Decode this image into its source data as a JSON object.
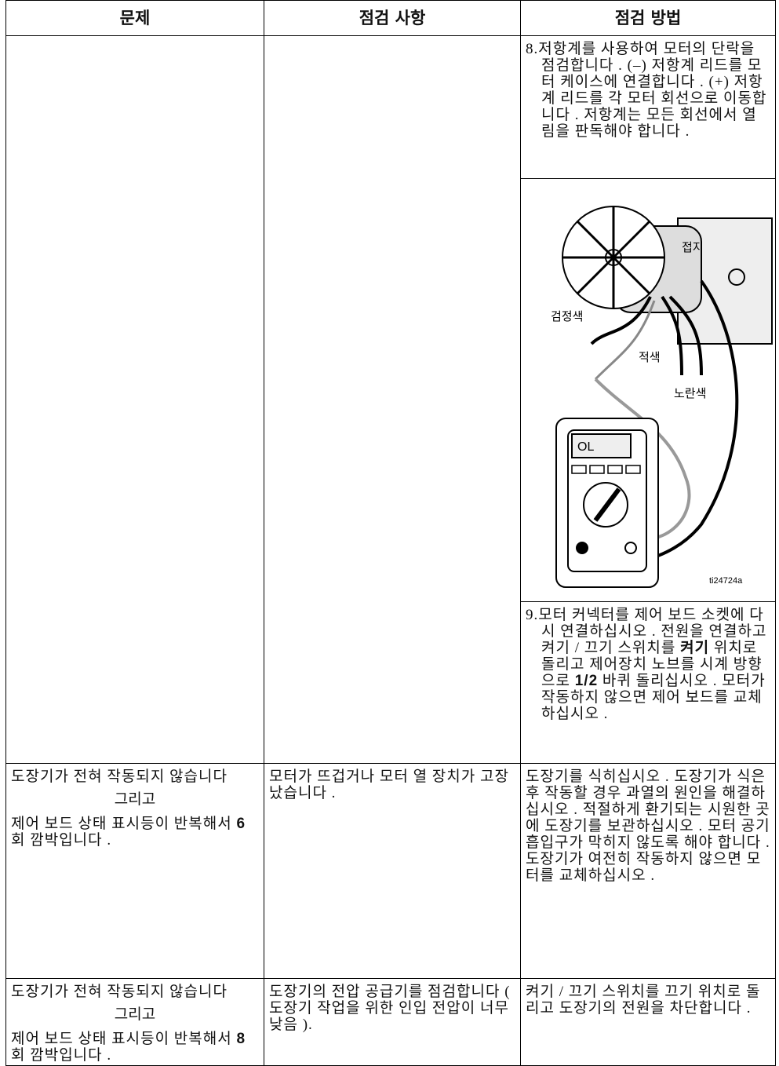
{
  "table": {
    "header": [
      "문제",
      "점검 사항",
      "점검 방법"
    ],
    "rows": [
      {
        "method": {
          "step8": "8.저항계를 사용하여 모터의 단락을 점검합니다 . (–) 저항계 리드를 모터 케이스에 연결합니다 . (+) 저항계 리드를 각 모터 회선으로 이동합니다 . 저항계는 모든 회선에서 열림을 판독해야 합니다 .",
          "figure": {
            "ground": "접지",
            "black": "검정색",
            "red": "적색",
            "yellow": "노란색",
            "display": "OL",
            "figure_id": "ti24724a"
          },
          "step9": [
            "9.모터 커넥터를 제어 보드 소켓에 다시 연결하십시오 . 전원을 연결하고 켜기 / 끄기 스위치를 ",
            "켜기",
            " 위치로 돌리고 제어장치 노브를 시계 방향으로 ",
            "1/2",
            " 바퀴 돌리십시오 . 모터가 작동하지 않으면 제어 보드를 교체하십시오 ."
          ]
        }
      },
      {
        "problem": [
          "도장기가 전혀 작동되지 않습니다",
          "그리고",
          "제어 보드 상태 표시등이 반복해서 ",
          "6",
          " 회 깜박입니다 ."
        ],
        "check": "모터가 뜨겁거나 모터 열 장치가 고장났습니다 .",
        "method": "도장기를 식히십시오 . 도장기가 식은 후 작동할 경우 과열의 원인을 해결하십시오 . 적절하게 환기되는 시원한 곳에 도장기를 보관하십시오 . 모터 공기 흡입구가 막히지 않도록 해야 합니다 . 도장기가 여전히 작동하지 않으면 모터를 교체하십시오 ."
      },
      {
        "problem": [
          "도장기가 전혀 작동되지 않습니다",
          "그리고",
          "제어 보드 상태 표시등이 반복해서 ",
          "8",
          " 회 깜박입니다 ."
        ],
        "check": "도장기의 전압 공급기를 점검합니다 ( 도장기 작업을 위한 인입 전압이 너무 낮음 ).",
        "method": "켜기 / 끄기 스위치를 끄기 위치로 돌리고 도장기의 전원을 차단합니다 ."
      }
    ]
  }
}
